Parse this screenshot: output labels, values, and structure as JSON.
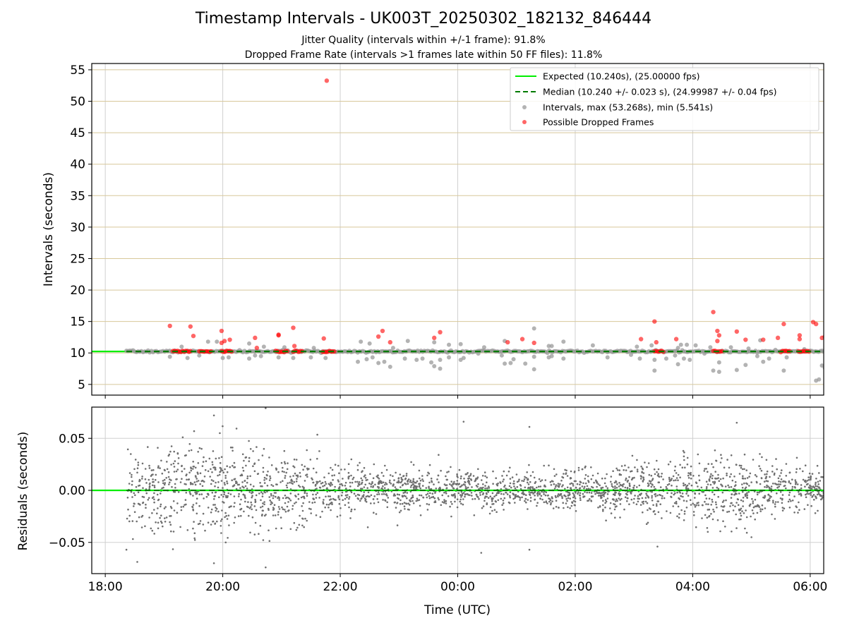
{
  "title": "Timestamp Intervals - UK003T_20250302_182132_846444",
  "subtitle_1": "Jitter Quality (intervals within +/-1 frame): 91.8%",
  "subtitle_2": "Dropped Frame Rate (intervals >1 frames late within 50 FF files): 11.8%",
  "colors": {
    "expected": "#00ee00",
    "median": "#007a00",
    "intervals": "#999999",
    "dropped": "#ff0000",
    "residuals": "#6f6f6f",
    "grid_top": "#d8c89a",
    "grid": "#d0d0d0"
  },
  "chart_data": [
    {
      "type": "scatter",
      "ylabel": "Intervals (seconds)",
      "ylim": [
        3.3,
        56
      ],
      "yticks": [
        5,
        10,
        15,
        20,
        25,
        30,
        35,
        40,
        45,
        50,
        55
      ],
      "xlim_hours": [
        17.77,
        30.23
      ],
      "xtick_hours": [
        18,
        20,
        22,
        24,
        26,
        28,
        30
      ],
      "xtick_labels": [
        "18:00",
        "20:00",
        "22:00",
        "00:00",
        "02:00",
        "04:00",
        "06:00"
      ],
      "grid": true,
      "legend_position": "top-right",
      "legend": [
        "Expected (10.240s), (25.00000 fps)",
        "Median (10.240 +/- 0.023 s), (24.99987 +/- 0.04 fps)",
        "Intervals, max (53.268s), min (5.541s)",
        "Possible Dropped Frames"
      ],
      "data_start_hour": 18.36,
      "data_end_hour": 30.23,
      "expected": 10.24,
      "median": 10.24,
      "intervals_max": 53.268,
      "intervals_min": 5.541,
      "outliers": [
        {
          "x": 19.1,
          "y": 9.4
        },
        {
          "x": 19.4,
          "y": 9.2
        },
        {
          "x": 19.6,
          "y": 9.6
        },
        {
          "x": 19.75,
          "y": 11.8
        },
        {
          "x": 19.9,
          "y": 11.8
        },
        {
          "x": 20.0,
          "y": 9.2
        },
        {
          "x": 20.1,
          "y": 9.3
        },
        {
          "x": 20.45,
          "y": 11.5
        },
        {
          "x": 20.45,
          "y": 9.1
        },
        {
          "x": 20.55,
          "y": 9.6
        },
        {
          "x": 20.7,
          "y": 11.0
        },
        {
          "x": 20.95,
          "y": 9.3
        },
        {
          "x": 21.05,
          "y": 10.9
        },
        {
          "x": 21.2,
          "y": 9.2
        },
        {
          "x": 21.55,
          "y": 10.8
        },
        {
          "x": 21.75,
          "y": 9.2
        },
        {
          "x": 22.3,
          "y": 8.6
        },
        {
          "x": 22.35,
          "y": 11.8
        },
        {
          "x": 22.45,
          "y": 9.0
        },
        {
          "x": 22.5,
          "y": 11.5
        },
        {
          "x": 22.55,
          "y": 9.3
        },
        {
          "x": 22.65,
          "y": 8.4
        },
        {
          "x": 22.75,
          "y": 8.6
        },
        {
          "x": 22.85,
          "y": 7.8
        },
        {
          "x": 22.9,
          "y": 10.8
        },
        {
          "x": 23.1,
          "y": 9.1
        },
        {
          "x": 23.15,
          "y": 11.9
        },
        {
          "x": 23.3,
          "y": 8.9
        },
        {
          "x": 23.4,
          "y": 9.1
        },
        {
          "x": 23.55,
          "y": 8.5
        },
        {
          "x": 23.6,
          "y": 7.9
        },
        {
          "x": 23.6,
          "y": 11.7
        },
        {
          "x": 23.7,
          "y": 8.9
        },
        {
          "x": 23.7,
          "y": 7.5
        },
        {
          "x": 23.85,
          "y": 9.3
        },
        {
          "x": 23.85,
          "y": 11.3
        },
        {
          "x": 24.05,
          "y": 11.4
        },
        {
          "x": 24.05,
          "y": 8.9
        },
        {
          "x": 24.1,
          "y": 9.2
        },
        {
          "x": 24.35,
          "y": 9.9
        },
        {
          "x": 24.45,
          "y": 10.9
        },
        {
          "x": 24.75,
          "y": 9.6
        },
        {
          "x": 24.8,
          "y": 11.9
        },
        {
          "x": 24.8,
          "y": 8.3
        },
        {
          "x": 24.9,
          "y": 8.4
        },
        {
          "x": 24.95,
          "y": 9.0
        },
        {
          "x": 25.15,
          "y": 8.3
        },
        {
          "x": 25.3,
          "y": 9.4
        },
        {
          "x": 25.3,
          "y": 13.9
        },
        {
          "x": 25.3,
          "y": 7.4
        },
        {
          "x": 25.55,
          "y": 11.1
        },
        {
          "x": 25.6,
          "y": 11.1
        },
        {
          "x": 25.55,
          "y": 9.3
        },
        {
          "x": 25.6,
          "y": 9.5
        },
        {
          "x": 25.8,
          "y": 11.8
        },
        {
          "x": 25.8,
          "y": 9.1
        },
        {
          "x": 26.3,
          "y": 11.2
        },
        {
          "x": 26.55,
          "y": 9.3
        },
        {
          "x": 26.95,
          "y": 9.7
        },
        {
          "x": 27.05,
          "y": 11.0
        },
        {
          "x": 27.1,
          "y": 9.1
        },
        {
          "x": 27.3,
          "y": 11.2
        },
        {
          "x": 27.35,
          "y": 8.9
        },
        {
          "x": 27.35,
          "y": 7.2
        },
        {
          "x": 27.55,
          "y": 9.1
        },
        {
          "x": 27.7,
          "y": 9.6
        },
        {
          "x": 27.75,
          "y": 10.8
        },
        {
          "x": 27.75,
          "y": 8.2
        },
        {
          "x": 27.8,
          "y": 11.3
        },
        {
          "x": 27.85,
          "y": 9.1
        },
        {
          "x": 27.9,
          "y": 11.3
        },
        {
          "x": 27.95,
          "y": 8.9
        },
        {
          "x": 28.05,
          "y": 11.2
        },
        {
          "x": 28.2,
          "y": 9.9
        },
        {
          "x": 28.3,
          "y": 10.9
        },
        {
          "x": 28.35,
          "y": 7.2
        },
        {
          "x": 28.45,
          "y": 8.5
        },
        {
          "x": 28.45,
          "y": 7.0
        },
        {
          "x": 28.65,
          "y": 10.9
        },
        {
          "x": 28.75,
          "y": 7.3
        },
        {
          "x": 28.9,
          "y": 8.1
        },
        {
          "x": 28.95,
          "y": 10.7
        },
        {
          "x": 29.1,
          "y": 9.5
        },
        {
          "x": 29.15,
          "y": 12.0
        },
        {
          "x": 29.2,
          "y": 8.6
        },
        {
          "x": 29.3,
          "y": 9.1
        },
        {
          "x": 29.55,
          "y": 7.2
        },
        {
          "x": 29.6,
          "y": 9.3
        },
        {
          "x": 29.9,
          "y": 10.6
        },
        {
          "x": 30.1,
          "y": 5.6
        },
        {
          "x": 30.15,
          "y": 5.8
        },
        {
          "x": 30.2,
          "y": 8.0
        },
        {
          "x": 30.25,
          "y": 7.6
        },
        {
          "x": 19.3,
          "y": 11.0
        },
        {
          "x": 20.65,
          "y": 9.5
        },
        {
          "x": 21.5,
          "y": 9.3
        }
      ],
      "dropped_frames": [
        {
          "x": 21.77,
          "y": 53.27
        },
        {
          "x": 19.1,
          "y": 14.3
        },
        {
          "x": 19.45,
          "y": 14.2
        },
        {
          "x": 19.5,
          "y": 12.7
        },
        {
          "x": 19.98,
          "y": 13.5
        },
        {
          "x": 19.98,
          "y": 11.6
        },
        {
          "x": 20.03,
          "y": 11.9
        },
        {
          "x": 20.12,
          "y": 12.1
        },
        {
          "x": 20.55,
          "y": 12.4
        },
        {
          "x": 20.58,
          "y": 10.8
        },
        {
          "x": 20.95,
          "y": 12.8
        },
        {
          "x": 20.95,
          "y": 12.9
        },
        {
          "x": 21.2,
          "y": 14.0
        },
        {
          "x": 21.22,
          "y": 11.1
        },
        {
          "x": 21.72,
          "y": 12.3
        },
        {
          "x": 22.65,
          "y": 12.6
        },
        {
          "x": 22.72,
          "y": 13.5
        },
        {
          "x": 22.85,
          "y": 11.7
        },
        {
          "x": 23.6,
          "y": 12.4
        },
        {
          "x": 23.7,
          "y": 13.3
        },
        {
          "x": 24.85,
          "y": 11.7
        },
        {
          "x": 25.1,
          "y": 12.2
        },
        {
          "x": 25.3,
          "y": 11.6
        },
        {
          "x": 27.12,
          "y": 12.2
        },
        {
          "x": 27.35,
          "y": 15.0
        },
        {
          "x": 27.38,
          "y": 11.7
        },
        {
          "x": 27.72,
          "y": 12.2
        },
        {
          "x": 28.35,
          "y": 16.5
        },
        {
          "x": 28.42,
          "y": 13.5
        },
        {
          "x": 28.45,
          "y": 12.8
        },
        {
          "x": 28.42,
          "y": 11.9
        },
        {
          "x": 28.75,
          "y": 13.4
        },
        {
          "x": 28.9,
          "y": 12.1
        },
        {
          "x": 29.2,
          "y": 12.1
        },
        {
          "x": 29.45,
          "y": 12.4
        },
        {
          "x": 29.55,
          "y": 14.6
        },
        {
          "x": 29.82,
          "y": 12.8
        },
        {
          "x": 29.82,
          "y": 12.2
        },
        {
          "x": 30.05,
          "y": 14.9
        },
        {
          "x": 30.1,
          "y": 14.6
        },
        {
          "x": 30.2,
          "y": 12.4
        },
        {
          "x": 30.25,
          "y": 12.6
        }
      ],
      "dropped_clusters": [
        {
          "x_from": 19.15,
          "x_to": 19.45,
          "y": 10.24
        },
        {
          "x_from": 19.6,
          "x_to": 19.8,
          "y": 10.24
        },
        {
          "x_from": 19.98,
          "x_to": 20.15,
          "y": 10.24
        },
        {
          "x_from": 20.9,
          "x_to": 21.1,
          "y": 10.24
        },
        {
          "x_from": 21.2,
          "x_to": 21.35,
          "y": 10.24
        },
        {
          "x_from": 21.7,
          "x_to": 21.9,
          "y": 10.24
        },
        {
          "x_from": 27.35,
          "x_to": 27.5,
          "y": 10.24
        },
        {
          "x_from": 28.35,
          "x_to": 28.5,
          "y": 10.24
        },
        {
          "x_from": 29.5,
          "x_to": 29.65,
          "y": 10.24
        },
        {
          "x_from": 29.8,
          "x_to": 29.98,
          "y": 10.24
        }
      ]
    },
    {
      "type": "scatter",
      "xlabel": "Time (UTC)",
      "ylabel": "Residuals (seconds)",
      "ylim": [
        -0.08,
        0.08
      ],
      "yticks": [
        -0.05,
        0.0,
        0.05
      ],
      "ytick_labels": [
        "−0.05",
        "0.00",
        "0.05"
      ],
      "xlim_hours": [
        17.77,
        30.23
      ],
      "xtick_hours": [
        18,
        20,
        22,
        24,
        26,
        28,
        30
      ],
      "xtick_labels": [
        "18:00",
        "20:00",
        "22:00",
        "00:00",
        "02:00",
        "04:00",
        "06:00"
      ],
      "grid": true,
      "zero_line": 0.0,
      "data_start_hour": 18.36,
      "data_end_hour": 30.23,
      "residual_points": 2600,
      "envelope": [
        {
          "x": 18.36,
          "sd": 0.021
        },
        {
          "x": 19.0,
          "sd": 0.021
        },
        {
          "x": 19.5,
          "sd": 0.024
        },
        {
          "x": 20.5,
          "sd": 0.021
        },
        {
          "x": 21.3,
          "sd": 0.018
        },
        {
          "x": 21.8,
          "sd": 0.012
        },
        {
          "x": 22.4,
          "sd": 0.011
        },
        {
          "x": 23.5,
          "sd": 0.01
        },
        {
          "x": 24.5,
          "sd": 0.009
        },
        {
          "x": 25.5,
          "sd": 0.01
        },
        {
          "x": 26.5,
          "sd": 0.01
        },
        {
          "x": 27.5,
          "sd": 0.013
        },
        {
          "x": 28.2,
          "sd": 0.018
        },
        {
          "x": 28.9,
          "sd": 0.017
        },
        {
          "x": 29.5,
          "sd": 0.012
        },
        {
          "x": 30.23,
          "sd": 0.007
        }
      ],
      "extreme_points": [
        {
          "x": 18.36,
          "y": -0.057
        },
        {
          "x": 19.85,
          "y": -0.07
        },
        {
          "x": 19.85,
          "y": 0.072
        },
        {
          "x": 20.73,
          "y": 0.079
        },
        {
          "x": 20.73,
          "y": -0.074
        },
        {
          "x": 19.95,
          "y": 0.055
        },
        {
          "x": 20.05,
          "y": -0.05
        },
        {
          "x": 24.1,
          "y": 0.066
        },
        {
          "x": 24.4,
          "y": -0.06
        },
        {
          "x": 25.22,
          "y": 0.061
        },
        {
          "x": 25.22,
          "y": -0.057
        },
        {
          "x": 28.75,
          "y": 0.065
        },
        {
          "x": 29.0,
          "y": -0.045
        },
        {
          "x": 27.4,
          "y": -0.054
        }
      ]
    }
  ]
}
